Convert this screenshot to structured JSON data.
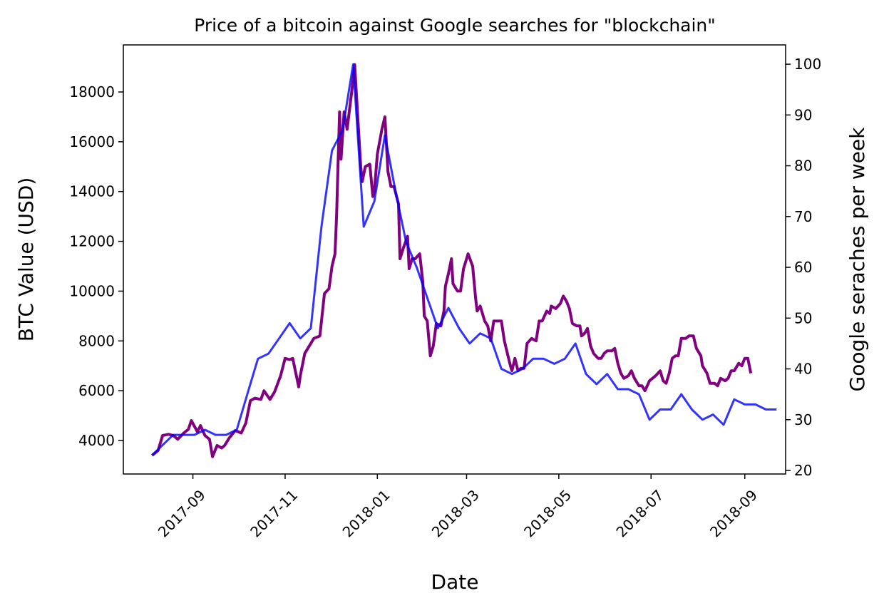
{
  "chart_data": {
    "type": "line",
    "title": "Price of a bitcoin against Google searches for \"blockchain\"",
    "x_label": "Date",
    "y_label": "BTC Value (USD)",
    "y2_label": "Google seraches per week",
    "y_label_color": "#800080",
    "y2_label_color": "#0000ff",
    "xlim": [
      17364,
      17802
    ],
    "ylim": [
      2655,
      19890
    ],
    "y2lim": [
      19.3,
      103.8
    ],
    "xticks": [
      {
        "value": 17410,
        "label": "2017-09"
      },
      {
        "value": 17471,
        "label": "2017-11"
      },
      {
        "value": 17532,
        "label": "2018-01"
      },
      {
        "value": 17591,
        "label": "2018-03"
      },
      {
        "value": 17652,
        "label": "2018-05"
      },
      {
        "value": 17713,
        "label": "2018-07"
      },
      {
        "value": 17775,
        "label": "2018-09"
      }
    ],
    "yticks": [
      4000,
      6000,
      8000,
      10000,
      12000,
      14000,
      16000,
      18000
    ],
    "y2ticks": [
      20,
      30,
      40,
      50,
      60,
      70,
      80,
      90,
      100
    ],
    "grid": false,
    "series": [
      {
        "name": "BTC Value (USD)",
        "color": "#800080",
        "alpha": 1,
        "width": 4,
        "x": [
          17383,
          17387,
          17390,
          17394,
          17397,
          17400,
          17404,
          17407,
          17409,
          17413,
          17415,
          17418,
          17421,
          17423,
          17426,
          17429,
          17431,
          17434,
          17438,
          17442,
          17445,
          17448,
          17451,
          17455,
          17457,
          17461,
          17464,
          17468,
          17471,
          17474,
          17476,
          17480,
          17481,
          17484,
          17487,
          17490,
          17494,
          17497,
          17500,
          17502,
          17504,
          17505,
          17507,
          17508,
          17510,
          17512,
          17515,
          17517,
          17519,
          17521,
          17522,
          17524,
          17527,
          17529,
          17530,
          17532,
          17535,
          17537,
          17539,
          17541,
          17543,
          17546,
          17547,
          17549,
          17552,
          17553,
          17555,
          17557,
          17560,
          17562,
          17563,
          17565,
          17567,
          17569,
          17571,
          17574,
          17576,
          17577,
          17579,
          17581,
          17582,
          17585,
          17587,
          17589,
          17592,
          17595,
          17597,
          17598,
          17600,
          17603,
          17605,
          17607,
          17609,
          17611,
          17614,
          17616,
          17618,
          17620,
          17621,
          17623,
          17625,
          17627,
          17629,
          17631,
          17634,
          17637,
          17639,
          17641,
          17644,
          17646,
          17647,
          17650,
          17653,
          17655,
          17657,
          17659,
          17661,
          17664,
          17666,
          17667,
          17669,
          17671,
          17673,
          17675,
          17678,
          17680,
          17682,
          17684,
          17687,
          17689,
          17691,
          17693,
          17695,
          17698,
          17700,
          17702,
          17705,
          17707,
          17709,
          17712,
          17714,
          17716,
          17719,
          17721,
          17723,
          17725,
          17727,
          17729,
          17731,
          17733,
          17736,
          17738,
          17741,
          17743,
          17746,
          17747,
          17750,
          17752,
          17755,
          17757,
          17759,
          17762,
          17764,
          17766,
          17768,
          17771,
          17773,
          17775,
          17777,
          17779
        ],
        "values": [
          3400,
          3600,
          4200,
          4250,
          4200,
          4050,
          4300,
          4450,
          4800,
          4350,
          4600,
          4200,
          4050,
          3350,
          3800,
          3700,
          3800,
          4100,
          4400,
          4300,
          4700,
          5600,
          5700,
          5650,
          6000,
          5650,
          5950,
          6600,
          7300,
          7250,
          7300,
          6150,
          6600,
          7500,
          7800,
          8100,
          8200,
          9900,
          10100,
          11000,
          11500,
          13000,
          17200,
          15300,
          17200,
          16500,
          18000,
          19100,
          17000,
          15000,
          14400,
          15000,
          15100,
          13800,
          14000,
          15500,
          16500,
          17000,
          14800,
          14200,
          14200,
          13500,
          11300,
          11700,
          12200,
          10900,
          11300,
          11300,
          11500,
          10400,
          9000,
          8800,
          7400,
          7800,
          8700,
          8600,
          9200,
          10200,
          10700,
          11300,
          10300,
          10000,
          10000,
          10900,
          11500,
          11000,
          9700,
          9200,
          9400,
          8800,
          8600,
          8000,
          8800,
          8800,
          8800,
          8000,
          7500,
          7000,
          6800,
          7300,
          6800,
          6900,
          6900,
          7900,
          8100,
          8000,
          8800,
          8800,
          9200,
          9100,
          9400,
          9300,
          9500,
          9800,
          9600,
          9300,
          8700,
          8600,
          8600,
          8200,
          8300,
          8500,
          7800,
          7500,
          7300,
          7300,
          7500,
          7600,
          7600,
          7700,
          7100,
          6700,
          6500,
          6600,
          6800,
          6500,
          6200,
          6200,
          6000,
          6400,
          6500,
          6600,
          6800,
          6400,
          6300,
          6700,
          7300,
          7400,
          7400,
          8100,
          8100,
          8200,
          8200,
          7700,
          7400,
          7000,
          6700,
          6300,
          6300,
          6200,
          6500,
          6400,
          6500,
          6800,
          6800,
          7100,
          7000,
          7300,
          7300,
          6700
        ]
      },
      {
        "name": "Google seraches per week",
        "color": "#0000ff",
        "alpha": 0.8,
        "width": 3,
        "axis": "y2",
        "x": [
          17383,
          17390,
          17397,
          17404,
          17411,
          17418,
          17425,
          17432,
          17439,
          17446,
          17453,
          17460,
          17467,
          17474,
          17481,
          17488,
          17495,
          17502,
          17509,
          17516,
          17523,
          17530,
          17537,
          17544,
          17551,
          17558,
          17565,
          17572,
          17579,
          17586,
          17593,
          17600,
          17607,
          17614,
          17621,
          17628,
          17635,
          17642,
          17649,
          17656,
          17663,
          17670,
          17677,
          17684,
          17691,
          17698,
          17705,
          17712,
          17719,
          17726,
          17733,
          17740,
          17747,
          17754,
          17761,
          17768,
          17775,
          17782,
          17789,
          17796
        ],
        "values": [
          23,
          25,
          27,
          27,
          27,
          28,
          27,
          27,
          28,
          35,
          42,
          43,
          46,
          49,
          46,
          48,
          68,
          83,
          87,
          100,
          68,
          73,
          86,
          75,
          65,
          60,
          54,
          48,
          52,
          48,
          45,
          47,
          46,
          40,
          39,
          40,
          42,
          42,
          41,
          42,
          45,
          39,
          37,
          39,
          36,
          36,
          35,
          30,
          32,
          32,
          35,
          32,
          30,
          31,
          29,
          34,
          33,
          33,
          32,
          32
        ]
      }
    ]
  }
}
